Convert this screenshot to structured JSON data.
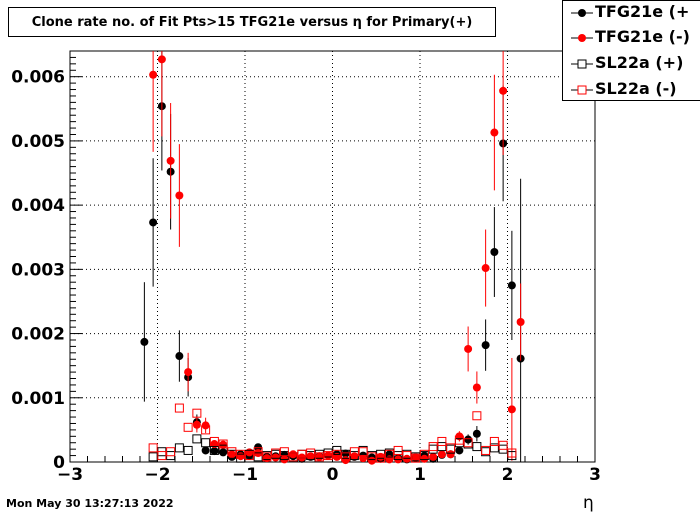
{
  "chart_data": {
    "type": "scatter",
    "title": "Clone rate no. of Fit Pts>15 TFG21e versus η for Primary(+)",
    "xlabel": "η",
    "ylabel": "",
    "xlim": [
      -3,
      3
    ],
    "ylim": [
      0,
      0.0064
    ],
    "x_ticks": [
      "−3",
      "−2",
      "−1",
      "0",
      "1",
      "2",
      "3"
    ],
    "y_ticks": [
      "0",
      "0.001",
      "0.002",
      "0.003",
      "0.004",
      "0.005",
      "0.006"
    ],
    "grid": true,
    "legend_position": "top-right",
    "series": [
      {
        "name": "TFG21e (+",
        "color": "#000000",
        "marker": "filled-circle",
        "x": [
          -2.15,
          -2.05,
          -1.95,
          -1.85,
          -1.75,
          -1.65,
          -1.55,
          -1.45,
          -1.35,
          -1.25,
          -1.15,
          -1.05,
          -0.95,
          -0.85,
          -0.75,
          -0.65,
          -0.55,
          -0.45,
          -0.35,
          -0.25,
          -0.15,
          -0.05,
          0.05,
          0.15,
          0.25,
          0.35,
          0.45,
          0.55,
          0.65,
          0.75,
          0.85,
          0.95,
          1.05,
          1.15,
          1.25,
          1.35,
          1.45,
          1.55,
          1.65,
          1.75,
          1.85,
          1.95,
          2.05,
          2.15
        ],
        "y": [
          0.00187,
          0.00373,
          0.00554,
          0.00452,
          0.00165,
          0.00132,
          0.00062,
          0.00018,
          0.00017,
          0.00015,
          8e-05,
          0.00012,
          0.0001,
          0.00023,
          8e-05,
          9e-05,
          0.00011,
          9e-05,
          5e-05,
          8e-05,
          9e-05,
          0.0001,
          0.00012,
          0.00013,
          8e-05,
          0.0001,
          7e-05,
          5e-05,
          0.00012,
          6e-05,
          4e-05,
          7e-05,
          0.0001,
          5e-05,
          0.00011,
          0.00012,
          0.00018,
          0.00035,
          0.00044,
          0.00182,
          0.00327,
          0.00496,
          0.00275,
          0.00161
        ],
        "err": [
          0.00093,
          0.001,
          0.001,
          0.0009,
          0.0004,
          0.0003,
          0.00012,
          5e-05,
          4e-05,
          4e-05,
          3e-05,
          3e-05,
          3e-05,
          4e-05,
          2e-05,
          2e-05,
          2e-05,
          2e-05,
          2e-05,
          2e-05,
          2e-05,
          2e-05,
          2e-05,
          2e-05,
          2e-05,
          2e-05,
          2e-05,
          2e-05,
          2e-05,
          2e-05,
          2e-05,
          2e-05,
          3e-05,
          3e-05,
          3e-05,
          4e-05,
          5e-05,
          8e-05,
          0.00012,
          0.0004,
          0.0007,
          0.0009,
          0.00085,
          0.0028
        ]
      },
      {
        "name": "TFG21e (-)",
        "color": "#ff0000",
        "marker": "filled-circle",
        "x": [
          -2.05,
          -1.95,
          -1.85,
          -1.75,
          -1.65,
          -1.55,
          -1.45,
          -1.35,
          -1.25,
          -1.15,
          -1.05,
          -0.95,
          -0.85,
          -0.75,
          -0.65,
          -0.55,
          -0.45,
          -0.35,
          -0.25,
          -0.15,
          -0.05,
          0.05,
          0.15,
          0.25,
          0.35,
          0.45,
          0.55,
          0.65,
          0.75,
          0.85,
          0.95,
          1.05,
          1.15,
          1.25,
          1.35,
          1.45,
          1.55,
          1.65,
          1.75,
          1.85,
          1.95,
          2.05,
          2.15
        ],
        "y": [
          0.00603,
          0.00627,
          0.00469,
          0.00415,
          0.0014,
          0.00058,
          0.00057,
          0.00028,
          0.00027,
          0.00012,
          9e-05,
          0.00015,
          0.00014,
          6e-05,
          7e-05,
          4e-05,
          0.00012,
          7e-05,
          9e-05,
          8e-05,
          0.0001,
          8e-05,
          3e-05,
          9e-05,
          6e-05,
          2e-05,
          8e-05,
          4e-05,
          4e-05,
          5e-05,
          7e-05,
          5e-05,
          8e-05,
          0.00012,
          0.00012,
          0.0004,
          0.00176,
          0.00116,
          0.00302,
          0.00513,
          0.00578,
          0.00082,
          0.00218
        ],
        "err": [
          0.0012,
          0.0012,
          0.0009,
          0.0008,
          0.0003,
          0.00012,
          0.00012,
          6e-05,
          5e-05,
          3e-05,
          3e-05,
          3e-05,
          3e-05,
          2e-05,
          2e-05,
          2e-05,
          2e-05,
          2e-05,
          2e-05,
          2e-05,
          2e-05,
          2e-05,
          2e-05,
          2e-05,
          2e-05,
          2e-05,
          2e-05,
          2e-05,
          2e-05,
          2e-05,
          2e-05,
          2e-05,
          3e-05,
          3e-05,
          4e-05,
          8e-05,
          0.00035,
          0.00025,
          0.0006,
          0.0009,
          0.001,
          0.0008,
          0.0006
        ]
      },
      {
        "name": "SL22a (+)",
        "color": "#000000",
        "marker": "open-square",
        "x": [
          -2.05,
          -1.95,
          -1.85,
          -1.75,
          -1.65,
          -1.55,
          -1.45,
          -1.35,
          -1.25,
          -1.15,
          -1.05,
          -0.95,
          -0.85,
          -0.75,
          -0.65,
          -0.55,
          -0.45,
          -0.35,
          -0.25,
          -0.15,
          -0.05,
          0.05,
          0.15,
          0.25,
          0.35,
          0.45,
          0.55,
          0.65,
          0.75,
          0.85,
          0.95,
          1.05,
          1.15,
          1.25,
          1.35,
          1.45,
          1.55,
          1.65,
          1.75,
          1.85,
          1.95,
          2.05
        ],
        "y": [
          8e-05,
          0.00016,
          0.0001,
          0.00022,
          0.00018,
          0.00036,
          0.0003,
          0.00018,
          0.0002,
          0.00012,
          6e-05,
          0.00012,
          8e-05,
          0.0001,
          0.00012,
          0.0001,
          8e-05,
          0.00012,
          0.0001,
          0.00012,
          0.00014,
          0.00018,
          0.00012,
          0.0001,
          0.00018,
          0.0001,
          0.00012,
          0.00014,
          0.0001,
          0.00012,
          8e-05,
          0.0001,
          0.0002,
          0.00024,
          0.0002,
          0.0003,
          0.00028,
          0.00024,
          0.00016,
          0.00022,
          0.0002,
          0.0001
        ]
      },
      {
        "name": "SL22a (-)",
        "color": "#ff0000",
        "marker": "open-square",
        "x": [
          -2.05,
          -1.95,
          -1.85,
          -1.75,
          -1.65,
          -1.55,
          -1.45,
          -1.35,
          -1.25,
          -1.15,
          -1.05,
          -0.95,
          -0.85,
          -0.75,
          -0.65,
          -0.55,
          -0.45,
          -0.35,
          -0.25,
          -0.15,
          -0.05,
          0.05,
          0.15,
          0.25,
          0.35,
          0.45,
          0.55,
          0.65,
          0.75,
          0.85,
          0.95,
          1.05,
          1.15,
          1.25,
          1.35,
          1.45,
          1.55,
          1.65,
          1.75,
          1.85,
          1.95,
          2.05
        ],
        "y": [
          0.00022,
          0.0001,
          0.00016,
          0.00084,
          0.00054,
          0.00076,
          0.0005,
          0.00032,
          0.00028,
          0.00016,
          0.00012,
          0.0001,
          0.00016,
          8e-05,
          0.00014,
          0.00016,
          8e-05,
          0.00012,
          0.00014,
          8e-05,
          0.0001,
          0.00012,
          8e-05,
          0.00016,
          0.00016,
          8e-05,
          6e-05,
          0.00012,
          0.00018,
          0.0001,
          6e-05,
          0.00012,
          0.00024,
          0.00032,
          0.00022,
          0.00034,
          0.0003,
          0.00072,
          0.00018,
          0.00032,
          0.00026,
          0.00014
        ]
      }
    ]
  },
  "footer": {
    "datestamp": "Mon May 30 13:27:13 2022"
  }
}
